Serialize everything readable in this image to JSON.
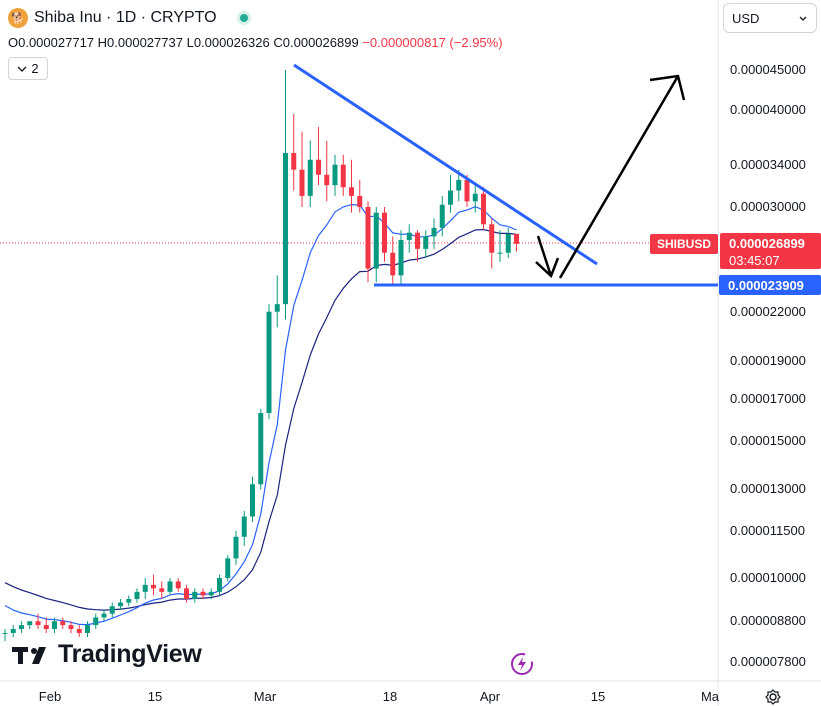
{
  "header": {
    "logo_text": "🐕",
    "title": "Shiba Inu · 1D · CRYPTO",
    "ohlc": {
      "open": "O0.000027717",
      "high": "H0.000027737",
      "low": "L0.000026326",
      "close": "C0.000026899",
      "change": "−0.000000817 (−2.95%)"
    },
    "indicator_count": "2",
    "currency": "USD"
  },
  "branding": {
    "logo_text": "TradingView"
  },
  "price_label": {
    "symbol": "SHIBUSD",
    "price": "0.000026899",
    "countdown": "03:45:07",
    "level": "0.000023909"
  },
  "colors": {
    "up": "#089981",
    "down": "#f23645",
    "ma_fast": "#2962ff",
    "ma_slow": "#1a237e",
    "trend": "#2962ff",
    "arrow": "#000000"
  },
  "chart_data": {
    "type": "candlestick",
    "y_scale": "log",
    "y_ticks": [
      "0.000045000",
      "0.000040000",
      "0.000034000",
      "0.000030000",
      "0.000022000",
      "0.000019000",
      "0.000017000",
      "0.000015000",
      "0.000013000",
      "0.000011500",
      "0.000010000",
      "0.000008800",
      "0.000007800"
    ],
    "x_ticks": [
      "Feb",
      "15",
      "Mar",
      "18",
      "Apr",
      "15",
      "Ma"
    ],
    "horizontal_level": 2.3909e-05,
    "last_price": 2.6899e-05,
    "series": [
      {
        "type": "candles",
        "data": [
          {
            "o": 8.5e-06,
            "h": 8.6e-06,
            "l": 8.3e-06,
            "c": 8.5e-06
          },
          {
            "o": 8.5e-06,
            "h": 8.7e-06,
            "l": 8.4e-06,
            "c": 8.6e-06
          },
          {
            "o": 8.6e-06,
            "h": 8.8e-06,
            "l": 8.5e-06,
            "c": 8.7e-06
          },
          {
            "o": 8.7e-06,
            "h": 8.8e-06,
            "l": 8.6e-06,
            "c": 8.8e-06
          },
          {
            "o": 8.8e-06,
            "h": 9e-06,
            "l": 8.6e-06,
            "c": 8.7e-06
          },
          {
            "o": 8.7e-06,
            "h": 8.9e-06,
            "l": 8.5e-06,
            "c": 8.6e-06
          },
          {
            "o": 8.6e-06,
            "h": 8.9e-06,
            "l": 8.5e-06,
            "c": 8.8e-06
          },
          {
            "o": 8.8e-06,
            "h": 8.9e-06,
            "l": 8.6e-06,
            "c": 8.7e-06
          },
          {
            "o": 8.7e-06,
            "h": 8.8e-06,
            "l": 8.5e-06,
            "c": 8.6e-06
          },
          {
            "o": 8.6e-06,
            "h": 8.7e-06,
            "l": 8.4e-06,
            "c": 8.5e-06
          },
          {
            "o": 8.5e-06,
            "h": 8.8e-06,
            "l": 8.4e-06,
            "c": 8.7e-06
          },
          {
            "o": 8.7e-06,
            "h": 9e-06,
            "l": 8.6e-06,
            "c": 8.9e-06
          },
          {
            "o": 8.9e-06,
            "h": 9.1e-06,
            "l": 8.8e-06,
            "c": 9e-06
          },
          {
            "o": 9e-06,
            "h": 9.3e-06,
            "l": 8.9e-06,
            "c": 9.2e-06
          },
          {
            "o": 9.2e-06,
            "h": 9.4e-06,
            "l": 9.1e-06,
            "c": 9.3e-06
          },
          {
            "o": 9.3e-06,
            "h": 9.5e-06,
            "l": 9.2e-06,
            "c": 9.4e-06
          },
          {
            "o": 9.4e-06,
            "h": 9.7e-06,
            "l": 9.3e-06,
            "c": 9.6e-06
          },
          {
            "o": 9.6e-06,
            "h": 1e-05,
            "l": 9.4e-06,
            "c": 9.8e-06
          },
          {
            "o": 9.8e-06,
            "h": 1.01e-05,
            "l": 9.5e-06,
            "c": 9.7e-06
          },
          {
            "o": 9.7e-06,
            "h": 9.9e-06,
            "l": 9.4e-06,
            "c": 9.6e-06
          },
          {
            "o": 9.6e-06,
            "h": 1e-05,
            "l": 9.5e-06,
            "c": 9.9e-06
          },
          {
            "o": 9.9e-06,
            "h": 1e-05,
            "l": 9.6e-06,
            "c": 9.7e-06
          },
          {
            "o": 9.7e-06,
            "h": 9.8e-06,
            "l": 9.3e-06,
            "c": 9.4e-06
          },
          {
            "o": 9.4e-06,
            "h": 9.7e-06,
            "l": 9.3e-06,
            "c": 9.6e-06
          },
          {
            "o": 9.6e-06,
            "h": 9.7e-06,
            "l": 9.4e-06,
            "c": 9.5e-06
          },
          {
            "o": 9.5e-06,
            "h": 9.7e-06,
            "l": 9.4e-06,
            "c": 9.6e-06
          },
          {
            "o": 9.6e-06,
            "h": 1.01e-05,
            "l": 9.5e-06,
            "c": 1e-05
          },
          {
            "o": 1e-05,
            "h": 1.07e-05,
            "l": 9.9e-06,
            "c": 1.06e-05
          },
          {
            "o": 1.06e-05,
            "h": 1.15e-05,
            "l": 1.04e-05,
            "c": 1.13e-05
          },
          {
            "o": 1.13e-05,
            "h": 1.22e-05,
            "l": 1.1e-05,
            "c": 1.2e-05
          },
          {
            "o": 1.2e-05,
            "h": 1.35e-05,
            "l": 1.18e-05,
            "c": 1.32e-05
          },
          {
            "o": 1.32e-05,
            "h": 1.65e-05,
            "l": 1.3e-05,
            "c": 1.63e-05
          },
          {
            "o": 1.63e-05,
            "h": 2.25e-05,
            "l": 1.6e-05,
            "c": 2.2e-05
          },
          {
            "o": 2.2e-05,
            "h": 2.45e-05,
            "l": 2.1e-05,
            "c": 2.25e-05
          },
          {
            "o": 2.25e-05,
            "h": 4.5e-05,
            "l": 2.15e-05,
            "c": 3.52e-05
          },
          {
            "o": 3.52e-05,
            "h": 3.95e-05,
            "l": 3.15e-05,
            "c": 3.35e-05
          },
          {
            "o": 3.35e-05,
            "h": 3.75e-05,
            "l": 3e-05,
            "c": 3.1e-05
          },
          {
            "o": 3.1e-05,
            "h": 3.65e-05,
            "l": 3e-05,
            "c": 3.45e-05
          },
          {
            "o": 3.45e-05,
            "h": 3.8e-05,
            "l": 3.2e-05,
            "c": 3.3e-05
          },
          {
            "o": 3.3e-05,
            "h": 3.65e-05,
            "l": 3.05e-05,
            "c": 3.2e-05
          },
          {
            "o": 3.2e-05,
            "h": 3.5e-05,
            "l": 3.1e-05,
            "c": 3.4e-05
          },
          {
            "o": 3.4e-05,
            "h": 3.5e-05,
            "l": 3.1e-05,
            "c": 3.18e-05
          },
          {
            "o": 3.18e-05,
            "h": 3.45e-05,
            "l": 2.95e-05,
            "c": 3.1e-05
          },
          {
            "o": 3.1e-05,
            "h": 3.25e-05,
            "l": 2.95e-05,
            "c": 3e-05
          },
          {
            "o": 3e-05,
            "h": 3.05e-05,
            "l": 2.4e-05,
            "c": 2.5e-05
          },
          {
            "o": 2.5e-05,
            "h": 3e-05,
            "l": 2.4e-05,
            "c": 2.95e-05
          },
          {
            "o": 2.95e-05,
            "h": 3e-05,
            "l": 2.55e-05,
            "c": 2.62e-05
          },
          {
            "o": 2.62e-05,
            "h": 2.75e-05,
            "l": 2.38e-05,
            "c": 2.45e-05
          },
          {
            "o": 2.45e-05,
            "h": 2.8e-05,
            "l": 2.38e-05,
            "c": 2.72e-05
          },
          {
            "o": 2.72e-05,
            "h": 2.85e-05,
            "l": 2.62e-05,
            "c": 2.78e-05
          },
          {
            "o": 2.78e-05,
            "h": 2.8e-05,
            "l": 2.55e-05,
            "c": 2.65e-05
          },
          {
            "o": 2.65e-05,
            "h": 2.8e-05,
            "l": 2.58e-05,
            "c": 2.75e-05
          },
          {
            "o": 2.75e-05,
            "h": 2.9e-05,
            "l": 2.65e-05,
            "c": 2.82e-05
          },
          {
            "o": 2.82e-05,
            "h": 3.1e-05,
            "l": 2.75e-05,
            "c": 3.02e-05
          },
          {
            "o": 3.02e-05,
            "h": 3.3e-05,
            "l": 2.95e-05,
            "c": 3.15e-05
          },
          {
            "o": 3.15e-05,
            "h": 3.35e-05,
            "l": 3.05e-05,
            "c": 3.25e-05
          },
          {
            "o": 3.25e-05,
            "h": 3.3e-05,
            "l": 3e-05,
            "c": 3.05e-05
          },
          {
            "o": 3.05e-05,
            "h": 3.2e-05,
            "l": 2.95e-05,
            "c": 3.12e-05
          },
          {
            "o": 3.12e-05,
            "h": 3.18e-05,
            "l": 2.8e-05,
            "c": 2.85e-05
          },
          {
            "o": 2.85e-05,
            "h": 2.9e-05,
            "l": 2.5e-05,
            "c": 2.62e-05
          },
          {
            "o": 2.62e-05,
            "h": 2.8e-05,
            "l": 2.55e-05,
            "c": 2.62e-05
          },
          {
            "o": 2.62e-05,
            "h": 2.82e-05,
            "l": 2.58e-05,
            "c": 2.77e-05
          },
          {
            "o": 2.77e-05,
            "h": 2.77e-05,
            "l": 2.63e-05,
            "c": 2.69e-05
          }
        ]
      }
    ]
  }
}
